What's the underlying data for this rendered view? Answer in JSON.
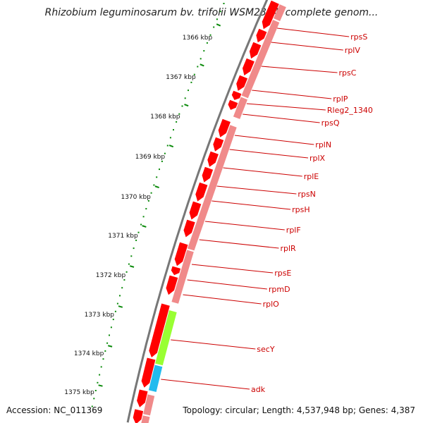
{
  "title": "Rhizobium leguminosarum bv. trifolii WSM2304, complete genom...",
  "accession": "Accession: NC_011369",
  "topology": "Topology: circular; Length: 4,537,948 bp; Genes: 4,387",
  "colors": {
    "backbone": "#777777",
    "feature_red": "#ff0000",
    "feature_pink": "#f08a8a",
    "feature_green": "#99ff33",
    "feature_cyan": "#22bbee",
    "tick_green": "#0a8a0a",
    "label_red": "#cc0000"
  },
  "scale": {
    "unit": "kbp",
    "labels": [
      "1366 kbp",
      "1367 kbp",
      "1368 kbp",
      "1369 kbp",
      "1370 kbp",
      "1371 kbp",
      "1372 kbp",
      "1373 kbp",
      "1374 kbp",
      "1375 kbp"
    ]
  },
  "genes": [
    {
      "name": "rpsS"
    },
    {
      "name": "rplV"
    },
    {
      "name": "rpsC"
    },
    {
      "name": "rplP"
    },
    {
      "name": "Rleg2_1340"
    },
    {
      "name": "rpsQ"
    },
    {
      "name": "rplN"
    },
    {
      "name": "rplX"
    },
    {
      "name": "rplE"
    },
    {
      "name": "rpsN"
    },
    {
      "name": "rpsH"
    },
    {
      "name": "rplF"
    },
    {
      "name": "rplR"
    },
    {
      "name": "rpsE"
    },
    {
      "name": "rpmD"
    },
    {
      "name": "rplO"
    },
    {
      "name": "secY"
    },
    {
      "name": "adk"
    }
  ]
}
